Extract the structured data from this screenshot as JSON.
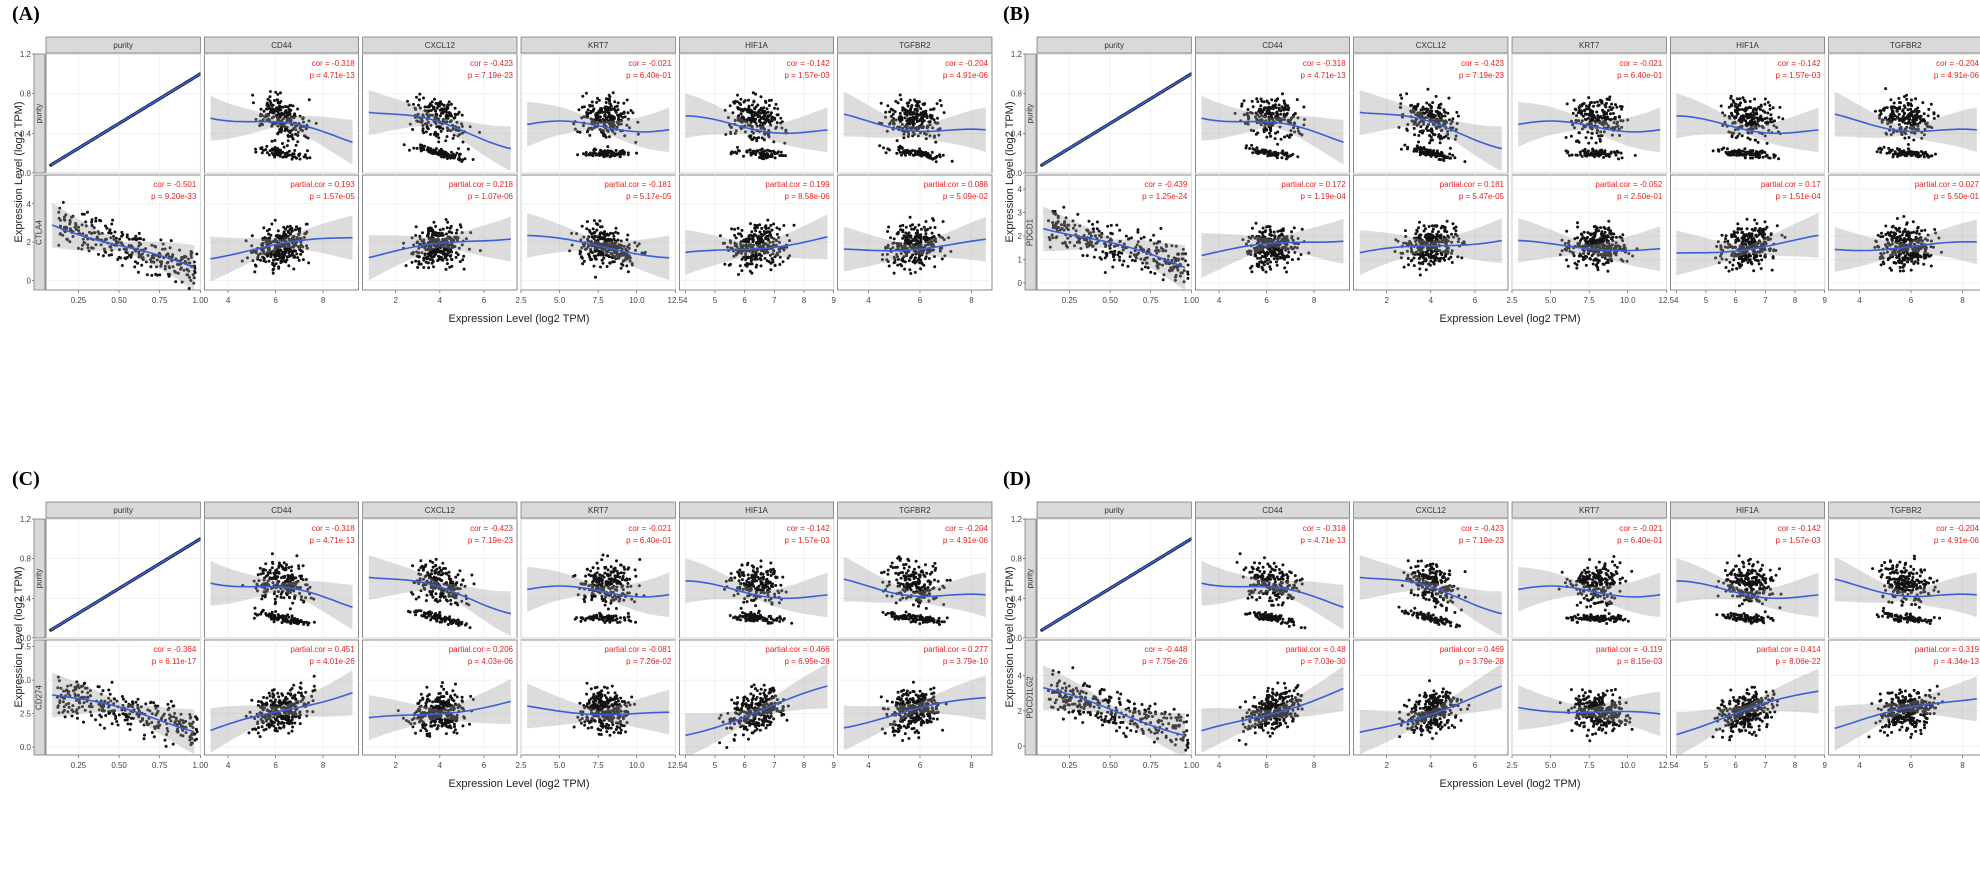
{
  "figure": {
    "axis_x_label": "Expression Level (log2 TPM)",
    "axis_y_label": "Expression Level (log2 TPM)",
    "columns": [
      "purity",
      "CD44",
      "CXCL12",
      "KRT7",
      "HIF1A",
      "TGFBR2"
    ],
    "x_ticks": [
      [
        "0.25",
        "0.50",
        "0.75",
        "1.00"
      ],
      [
        "4",
        "6",
        "8"
      ],
      [
        "2",
        "4",
        "6"
      ],
      [
        "2.5",
        "5.0",
        "7.5",
        "10.0",
        "12.5"
      ],
      [
        "4",
        "5",
        "6",
        "7",
        "8",
        "9"
      ],
      [
        "4",
        "6",
        "8"
      ]
    ],
    "purity_row": {
      "row_label": "purity",
      "y_ticks": [
        "0.0",
        "0.4",
        "0.8",
        "1.2"
      ],
      "stats": [
        null,
        [
          "cor = -0.318",
          "p = 4.71e-13"
        ],
        [
          "cor = -0.423",
          "p = 7.19e-23"
        ],
        [
          "cor = -0.021",
          "p = 6.40e-01"
        ],
        [
          "cor = -0.142",
          "p = 1.57e-03"
        ],
        [
          "cor = -0.204",
          "p = 4.91e-06"
        ]
      ]
    },
    "panels": [
      {
        "label": "(A)",
        "gene": "CTLA4",
        "y_ticks": [
          "0",
          "2",
          "4"
        ],
        "stats": [
          [
            "cor = -0.501",
            "p = 9.20e-33"
          ],
          [
            "partial.cor = 0.193",
            "p = 1.57e-05"
          ],
          [
            "partial.cor = 0.218",
            "p = 1.07e-06"
          ],
          [
            "partial.cor = -0.181",
            "p = 5.17e-05"
          ],
          [
            "partial.cor = 0.199",
            "p = 8.58e-06"
          ],
          [
            "partial.cor = 0.088",
            "p = 5.09e-02"
          ]
        ]
      },
      {
        "label": "(B)",
        "gene": "PDCD1",
        "y_ticks": [
          "0",
          "1",
          "2",
          "3",
          "4"
        ],
        "stats": [
          [
            "cor = -0.439",
            "p = 1.25e-24"
          ],
          [
            "partial.cor = 0.172",
            "p = 1.19e-04"
          ],
          [
            "partial.cor = 0.181",
            "p = 5.47e-05"
          ],
          [
            "partial.cor = -0.052",
            "p = 2.50e-01"
          ],
          [
            "partial.cor = 0.17",
            "p = 1.51e-04"
          ],
          [
            "partial.cor = 0.027",
            "p = 5.50e-01"
          ]
        ]
      },
      {
        "label": "(C)",
        "gene": "CD274",
        "y_ticks": [
          "0.0",
          "2.5",
          "5.0",
          "7.5"
        ],
        "stats": [
          [
            "cor = -0.364",
            "p = 6.11e-17"
          ],
          [
            "partial.cor = 0.451",
            "p = 4.01e-26"
          ],
          [
            "partial.cor = 0.206",
            "p = 4.03e-06"
          ],
          [
            "partial.cor = -0.081",
            "p = 7.26e-02"
          ],
          [
            "partial.cor = 0.466",
            "p = 6.95e-28"
          ],
          [
            "partial.cor = 0.277",
            "p = 3.79e-10"
          ]
        ]
      },
      {
        "label": "(D)",
        "gene": "PDCD1LG2",
        "y_ticks": [
          "0",
          "2",
          "4"
        ],
        "stats": [
          [
            "cor = -0.448",
            "p = 7.75e-26"
          ],
          [
            "partial.cor = 0.48",
            "p = 7.03e-30"
          ],
          [
            "partial.cor = 0.469",
            "p = 3.79e-28"
          ],
          [
            "partial.cor = -0.119",
            "p = 8.15e-03"
          ],
          [
            "partial.cor = 0.414",
            "p = 8.06e-22"
          ],
          [
            "partial.cor = 0.319",
            "p = 4.34e-13"
          ]
        ]
      }
    ]
  },
  "chart_data": {
    "type": "scatter",
    "title": "",
    "xlabel": "Expression Level (log2 TPM)",
    "ylabel": "Expression Level (log2 TPM)",
    "facets": [
      "purity",
      "CD44",
      "CXCL12",
      "KRT7",
      "HIF1A",
      "TGFBR2"
    ],
    "facet_xlim": [
      [
        0.05,
        1.0
      ],
      [
        3.0,
        9.5
      ],
      [
        0.5,
        7.5
      ],
      [
        2.5,
        12.5
      ],
      [
        3.8,
        9.0
      ],
      [
        2.8,
        8.8
      ]
    ],
    "purity_ylim": [
      0.0,
      1.2
    ],
    "gene_ylim": {
      "CTLA4": [
        -0.5,
        5.5
      ],
      "PDCD1": [
        -0.3,
        4.6
      ],
      "CD274": [
        -0.6,
        8.0
      ],
      "PDCD1LG2": [
        -0.5,
        6.0
      ]
    },
    "series": [
      {
        "panel": "A",
        "gene": "CTLA4",
        "cor_purity": -0.501,
        "partial_cor": [
          0.193,
          0.218,
          -0.181,
          0.199,
          0.088
        ],
        "p": [
          "9.20e-33",
          "1.57e-05",
          "1.07e-06",
          "5.17e-05",
          "8.58e-06",
          "5.09e-02"
        ]
      },
      {
        "panel": "B",
        "gene": "PDCD1",
        "cor_purity": -0.439,
        "partial_cor": [
          0.172,
          0.181,
          -0.052,
          0.17,
          0.027
        ],
        "p": [
          "1.25e-24",
          "1.19e-04",
          "5.47e-05",
          "2.50e-01",
          "1.51e-04",
          "5.50e-01"
        ]
      },
      {
        "panel": "C",
        "gene": "CD274",
        "cor_purity": -0.364,
        "partial_cor": [
          0.451,
          0.206,
          -0.081,
          0.466,
          0.277
        ],
        "p": [
          "6.11e-17",
          "4.01e-26",
          "4.03e-06",
          "7.26e-02",
          "6.95e-28",
          "3.79e-10"
        ]
      },
      {
        "panel": "D",
        "gene": "PDCD1LG2",
        "cor_purity": -0.448,
        "partial_cor": [
          0.48,
          0.469,
          -0.119,
          0.414,
          0.319
        ],
        "p": [
          "7.75e-26",
          "7.03e-30",
          "3.79e-28",
          "8.15e-03",
          "8.06e-22",
          "4.34e-13"
        ]
      }
    ],
    "purity_cor": [
      -0.318,
      -0.423,
      -0.021,
      -0.142,
      -0.204
    ]
  }
}
